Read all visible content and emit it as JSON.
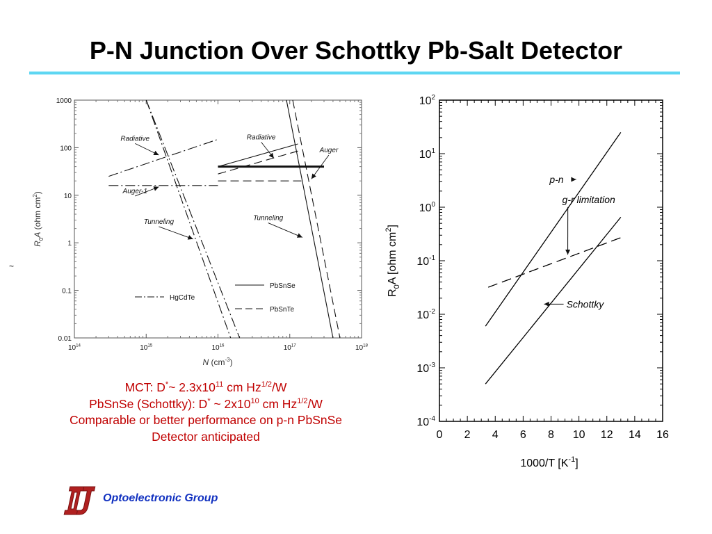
{
  "slide": {
    "title": "P-N Junction Over Schottky Pb-Salt Detector",
    "stray_mark": "~",
    "notes": [
      {
        "pre": "MCT: D",
        "s1": "*",
        "mid": "~ 2.3x10",
        "s2": "11",
        "post": " cm Hz",
        "s3": "1/2",
        "tail": "/W"
      },
      {
        "pre": "PbSnSe (Schottky): D",
        "s1": "*",
        "mid": " ~ 2x10",
        "s2": "10",
        "post": " cm Hz",
        "s3": "1/2",
        "tail": "/W"
      },
      {
        "text": "Comparable or better performance on p-n PbSnSe"
      },
      {
        "text": "Detector anticipated"
      }
    ],
    "footer": {
      "org": "Optoelectronic Group",
      "logo_icon": "ou-logo-icon",
      "logo_color": "#b02020"
    }
  },
  "chart_data": [
    {
      "type": "line",
      "xlabel": {
        "italic": "N",
        "pre": " (cm",
        "sup": "-3",
        "post": ")"
      },
      "ylabel": {
        "R": "R",
        "sub": "0",
        "A": "A",
        "pre": " (ohm cm",
        "sup": "2",
        "post": ")"
      },
      "x_scale": "log",
      "y_scale": "log",
      "xlim": [
        100000000000000.0,
        1e+18
      ],
      "ylim": [
        0.01,
        1000
      ],
      "x_ticks": [
        {
          "v": 100000000000000.0,
          "base": "10",
          "exp": "14"
        },
        {
          "v": 1000000000000000.0,
          "base": "10",
          "exp": "15"
        },
        {
          "v": 1e+16,
          "base": "10",
          "exp": "16"
        },
        {
          "v": 1e+17,
          "base": "10",
          "exp": "17"
        },
        {
          "v": 1e+18,
          "base": "10",
          "exp": "18"
        }
      ],
      "y_ticks": [
        {
          "v": 1000,
          "label": "1000"
        },
        {
          "v": 100,
          "label": "100"
        },
        {
          "v": 10,
          "label": "10"
        },
        {
          "v": 1,
          "label": "1"
        },
        {
          "v": 0.1,
          "label": "0.1"
        },
        {
          "v": 0.01,
          "label": "0.01"
        }
      ],
      "legend": {
        "entries": [
          {
            "name": "PbSnSe",
            "style": "solid"
          },
          {
            "name": "PbSnTe",
            "style": "dashed"
          },
          {
            "name": "HgCdTe",
            "style": "dashdot"
          }
        ]
      },
      "series": [
        {
          "style": "dashdot",
          "x": [
            300000000000000.0,
            1e+16
          ],
          "y": [
            25,
            150
          ]
        },
        {
          "style": "dashdot",
          "x": [
            300000000000000.0,
            1e+16
          ],
          "y": [
            16,
            16
          ]
        },
        {
          "style": "dashdot",
          "x": [
            1000000000000000.0,
            1.5e+16
          ],
          "y": [
            1000,
            0.01
          ]
        },
        {
          "style": "dashdot",
          "x": [
            1000000000000000.0,
            2e+16
          ],
          "y": [
            1000,
            0.01
          ]
        },
        {
          "style": "solid",
          "x": [
            1e+16,
            1.3e+17
          ],
          "y": [
            40,
            120
          ]
        },
        {
          "style": "dashed",
          "x": [
            1e+16,
            1.3e+17
          ],
          "y": [
            28,
            85
          ]
        },
        {
          "style": "dashed",
          "x": [
            1e+16,
            1.6e+17
          ],
          "y": [
            20,
            20
          ]
        },
        {
          "style": "thick",
          "x": [
            1e+16,
            3e+17
          ],
          "y": [
            40,
            40
          ]
        },
        {
          "style": "solid",
          "x": [
            9e+16,
            4e+17
          ],
          "y": [
            1000,
            0.01
          ]
        },
        {
          "style": "dashed",
          "x": [
            1.1e+17,
            5e+17
          ],
          "y": [
            1000,
            0.01
          ]
        }
      ],
      "annotations": [
        {
          "text": "Radiative",
          "x": 700000000000000.0,
          "y": 140,
          "tx": 1500000000000000.0,
          "ty": 70
        },
        {
          "text": "Auger-1",
          "x": 700000000000000.0,
          "y": 11,
          "tx": 1500000000000000.0,
          "ty": 15
        },
        {
          "text": "Tunneling",
          "x": 1500000000000000.0,
          "y": 2.5,
          "tx": 4500000000000000.0,
          "ty": 1.2
        },
        {
          "text": "Radiative",
          "x": 4e+16,
          "y": 150,
          "tx": 6e+16,
          "ty": 60
        },
        {
          "text": "Auger",
          "x": 3.5e+17,
          "y": 80,
          "tx": 2e+17,
          "ty": 22
        },
        {
          "text": "Tunneling",
          "x": 5e+16,
          "y": 3,
          "tx": 1.5e+17,
          "ty": 1.3
        }
      ]
    },
    {
      "type": "line",
      "xlabel": {
        "pre": "1000/T [K",
        "sup": "-1",
        "post": "]"
      },
      "ylabel": {
        "R": "R",
        "sub": "0",
        "A": "A",
        "pre": " [ohm cm",
        "sup": "2",
        "post": "]"
      },
      "y_scale": "log",
      "xlim": [
        0,
        16
      ],
      "ylim": [
        0.0001,
        100
      ],
      "x_ticks": [
        0,
        2,
        4,
        6,
        8,
        10,
        12,
        14,
        16
      ],
      "x_tick_labels": [
        "0",
        "2",
        "4",
        "6",
        "8",
        "10",
        "12",
        "14",
        "16"
      ],
      "y_ticks": [
        {
          "v": 100,
          "base": "10",
          "exp": "2"
        },
        {
          "v": 10,
          "base": "10",
          "exp": "1"
        },
        {
          "v": 1,
          "base": "10",
          "exp": "0"
        },
        {
          "v": 0.1,
          "base": "10",
          "exp": "-1"
        },
        {
          "v": 0.01,
          "base": "10",
          "exp": "-2"
        },
        {
          "v": 0.001,
          "base": "10",
          "exp": "-3"
        },
        {
          "v": 0.0001,
          "base": "10",
          "exp": "-4"
        }
      ],
      "series": [
        {
          "style": "solid",
          "x": [
            3.3,
            13
          ],
          "y": [
            0.006,
            25
          ]
        },
        {
          "style": "dashed",
          "x": [
            3.5,
            13
          ],
          "y": [
            0.032,
            0.27
          ]
        },
        {
          "style": "solid",
          "x": [
            3.3,
            13
          ],
          "y": [
            0.0005,
            0.65
          ]
        }
      ],
      "annotations": [
        {
          "text": "p-n",
          "x": 7,
          "y": 3.3,
          "tx": 9.8,
          "ty": 3.3,
          "style": "arrow-right"
        },
        {
          "text": "g-r limitation",
          "x": 10.7,
          "y": 1.2,
          "tx": 9.2,
          "ty": 0.13
        },
        {
          "text": "Schottky",
          "x": 9.1,
          "y": 0.0155,
          "tx": 7.5,
          "ty": 0.0155,
          "style": "arrow-left"
        }
      ]
    }
  ]
}
